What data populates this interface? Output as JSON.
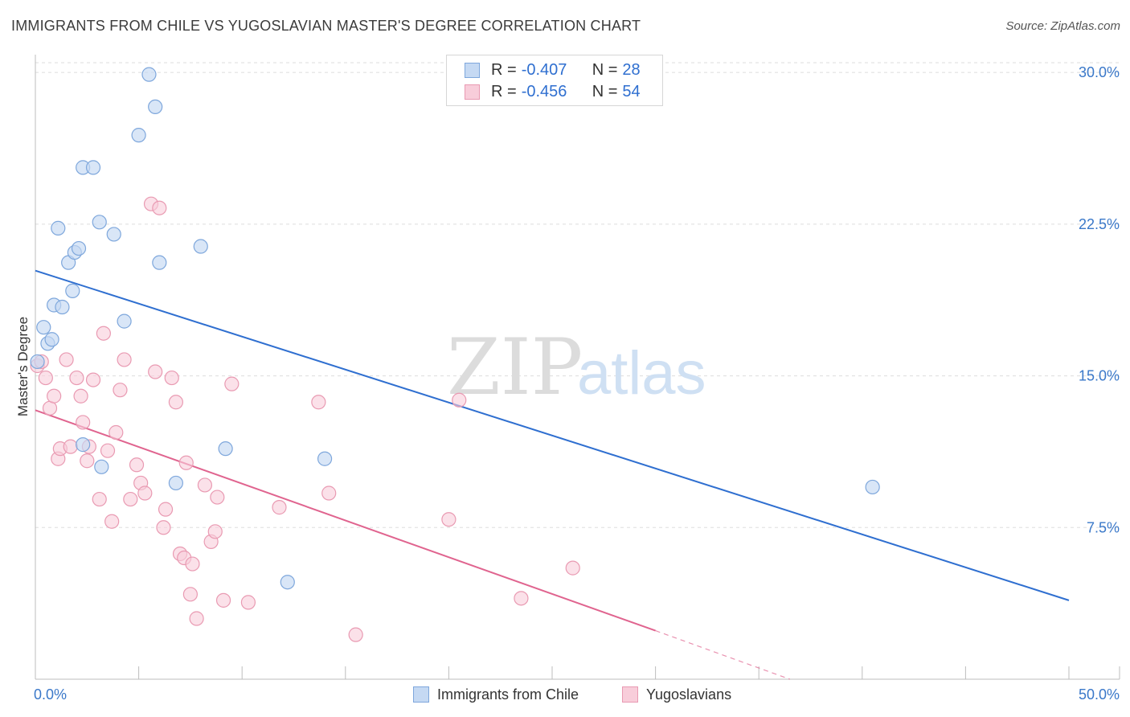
{
  "title": "IMMIGRANTS FROM CHILE VS YUGOSLAVIAN MASTER'S DEGREE CORRELATION CHART",
  "source": "Source: ZipAtlas.com",
  "watermark": {
    "zip": "ZIP",
    "atlas": "atlas"
  },
  "legend": {
    "r_label": "R = ",
    "n_label": "N = ",
    "rows": [
      {
        "r": "-0.407",
        "n": "28"
      },
      {
        "r": "-0.456",
        "n": "54"
      }
    ]
  },
  "bottom_legend": [
    "Immigrants from Chile",
    "Yugoslavians"
  ],
  "colors": {
    "blue_fill": "#c5d9f3",
    "blue_stroke": "#7ea7dc",
    "blue_line": "#2f6fd0",
    "pink_fill": "#f8cdda",
    "pink_stroke": "#e99ab2",
    "pink_line": "#e0648f",
    "grid": "#dddddd",
    "tick_text": "#3a78c9"
  },
  "chart_data": {
    "type": "scatter",
    "title": "IMMIGRANTS FROM CHILE VS YUGOSLAVIAN MASTER'S DEGREE CORRELATION CHART",
    "xlabel": "",
    "ylabel": "Master's Degree",
    "xlim": [
      0,
      50
    ],
    "ylim": [
      0,
      30.8
    ],
    "x_tick_labels": [
      "0.0%",
      "50.0%"
    ],
    "y_ticks": [
      7.5,
      15.0,
      22.5,
      30.0
    ],
    "y_tick_labels": [
      "7.5%",
      "15.0%",
      "22.5%",
      "30.0%"
    ],
    "series": [
      {
        "name": "Immigrants from Chile",
        "color": "#7ea7dc",
        "r": -0.407,
        "n": 28,
        "trend": {
          "x": [
            0,
            50
          ],
          "y": [
            20.2,
            3.9
          ]
        },
        "points": [
          [
            0.1,
            15.7
          ],
          [
            0.4,
            17.4
          ],
          [
            0.6,
            16.6
          ],
          [
            0.8,
            16.8
          ],
          [
            0.9,
            18.5
          ],
          [
            1.1,
            22.3
          ],
          [
            1.3,
            18.4
          ],
          [
            1.6,
            20.6
          ],
          [
            1.8,
            19.2
          ],
          [
            1.9,
            21.1
          ],
          [
            2.1,
            21.3
          ],
          [
            2.3,
            11.6
          ],
          [
            2.3,
            25.3
          ],
          [
            2.8,
            25.3
          ],
          [
            3.1,
            22.6
          ],
          [
            3.2,
            10.5
          ],
          [
            3.8,
            22.0
          ],
          [
            4.3,
            17.7
          ],
          [
            5.0,
            26.9
          ],
          [
            5.5,
            29.9
          ],
          [
            5.8,
            28.3
          ],
          [
            6.0,
            20.6
          ],
          [
            6.8,
            9.7
          ],
          [
            8.0,
            21.4
          ],
          [
            9.2,
            11.4
          ],
          [
            12.2,
            4.8
          ],
          [
            14.0,
            10.9
          ],
          [
            40.5,
            9.5
          ]
        ]
      },
      {
        "name": "Yugoslavians",
        "color": "#e99ab2",
        "r": -0.456,
        "n": 54,
        "trend": {
          "x": [
            0,
            30.0
          ],
          "y": [
            13.3,
            2.4
          ]
        },
        "trend_dashed": {
          "x": [
            30.0,
            36.5
          ],
          "y": [
            2.4,
            0.0
          ]
        },
        "points": [
          [
            0.1,
            15.5
          ],
          [
            0.3,
            15.7
          ],
          [
            0.5,
            14.9
          ],
          [
            0.7,
            13.4
          ],
          [
            0.9,
            14.0
          ],
          [
            1.1,
            10.9
          ],
          [
            1.2,
            11.4
          ],
          [
            1.5,
            15.8
          ],
          [
            1.7,
            11.5
          ],
          [
            2.0,
            14.9
          ],
          [
            2.2,
            14.0
          ],
          [
            2.3,
            12.7
          ],
          [
            2.5,
            10.8
          ],
          [
            2.6,
            11.5
          ],
          [
            2.8,
            14.8
          ],
          [
            3.1,
            8.9
          ],
          [
            3.3,
            17.1
          ],
          [
            3.5,
            11.3
          ],
          [
            3.7,
            7.8
          ],
          [
            3.9,
            12.2
          ],
          [
            4.1,
            14.3
          ],
          [
            4.3,
            15.8
          ],
          [
            4.6,
            8.9
          ],
          [
            4.9,
            10.6
          ],
          [
            5.1,
            9.7
          ],
          [
            5.3,
            9.2
          ],
          [
            5.6,
            23.5
          ],
          [
            5.8,
            15.2
          ],
          [
            6.0,
            23.3
          ],
          [
            6.2,
            7.5
          ],
          [
            6.3,
            8.4
          ],
          [
            6.6,
            14.9
          ],
          [
            6.8,
            13.7
          ],
          [
            7.0,
            6.2
          ],
          [
            7.2,
            6.0
          ],
          [
            7.5,
            4.2
          ],
          [
            7.6,
            5.7
          ],
          [
            7.8,
            3.0
          ],
          [
            8.2,
            9.6
          ],
          [
            8.5,
            6.8
          ],
          [
            8.7,
            7.3
          ],
          [
            8.8,
            9.0
          ],
          [
            9.1,
            3.9
          ],
          [
            9.5,
            14.6
          ],
          [
            10.3,
            3.8
          ],
          [
            11.8,
            8.5
          ],
          [
            13.7,
            13.7
          ],
          [
            14.2,
            9.2
          ],
          [
            15.5,
            2.2
          ],
          [
            20.0,
            7.9
          ],
          [
            20.5,
            13.8
          ],
          [
            23.5,
            4.0
          ],
          [
            26.0,
            5.5
          ],
          [
            7.3,
            10.7
          ]
        ]
      }
    ]
  }
}
